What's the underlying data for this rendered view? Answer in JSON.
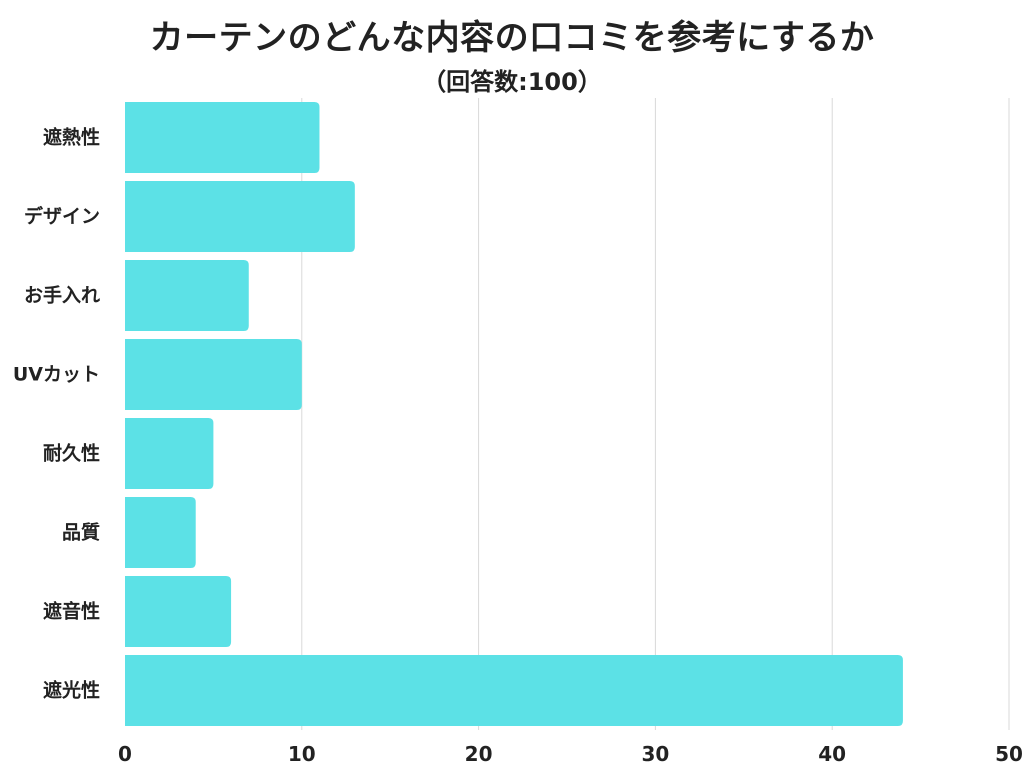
{
  "colors": {
    "bar": "#5ce1e6",
    "grid": "#d9d9d9",
    "text": "#222222"
  },
  "chart_data": {
    "type": "bar",
    "orientation": "horizontal",
    "title": "カーテンのどんな内容の口コミを参考にするか",
    "subtitle": "（回答数:100）",
    "categories": [
      "遮熱性",
      "デザイン",
      "お手入れ",
      "UVカット",
      "耐久性",
      "品質",
      "遮音性",
      "遮光性"
    ],
    "values": [
      11,
      13,
      7,
      10,
      5,
      4,
      6,
      44
    ],
    "xlim": [
      0,
      50
    ],
    "xticks": [
      0,
      10,
      20,
      30,
      40,
      50
    ],
    "grid": "vertical"
  }
}
